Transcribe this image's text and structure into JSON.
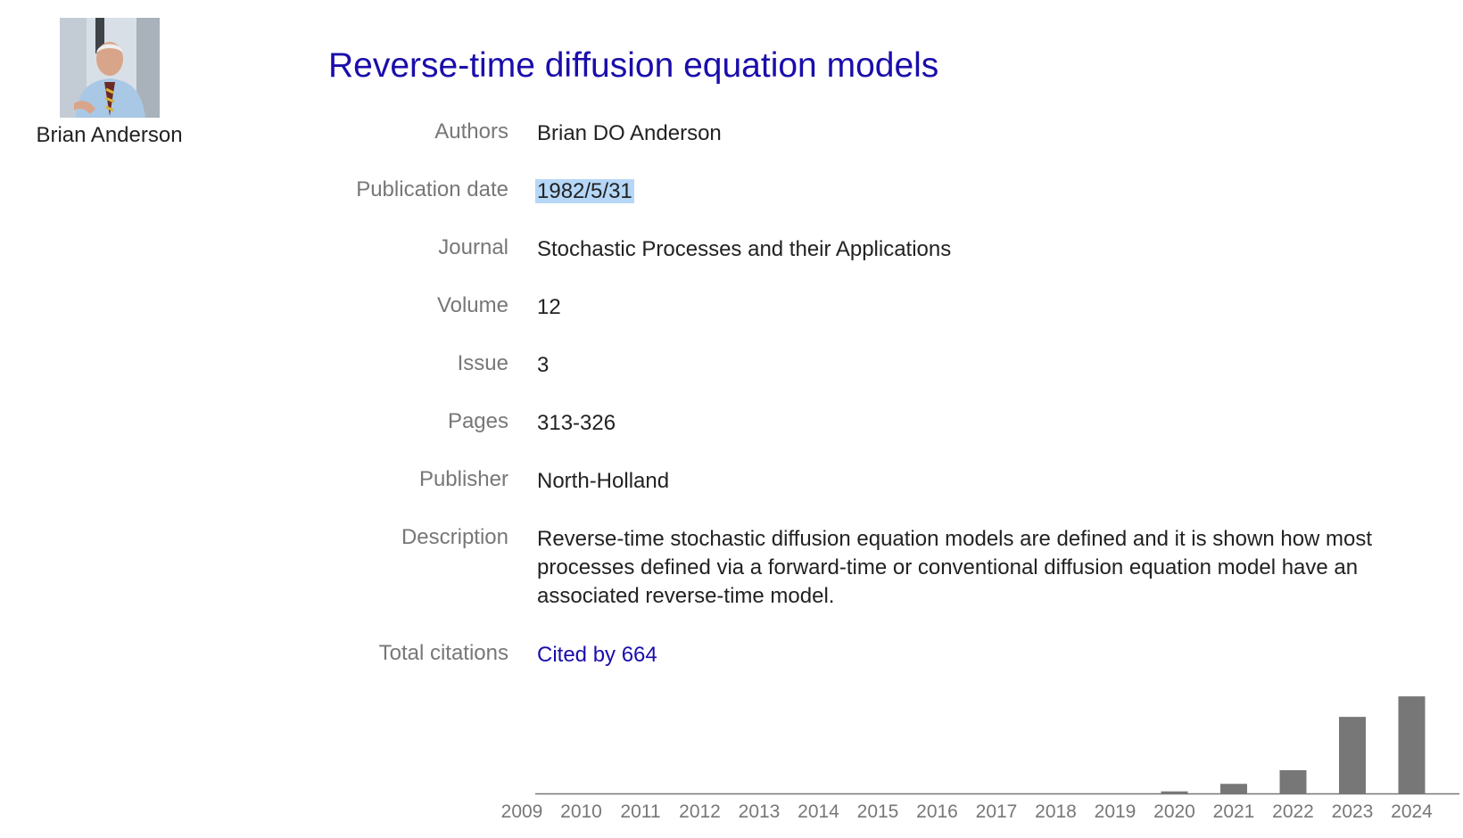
{
  "profile": {
    "name": "Brian Anderson",
    "avatar_icon": "person-photo-icon"
  },
  "article": {
    "title": "Reverse-time diffusion equation models"
  },
  "fields": {
    "authors": {
      "label": "Authors",
      "value": "Brian DO Anderson"
    },
    "publication_date": {
      "label": "Publication date",
      "value": "1982/5/31"
    },
    "journal": {
      "label": "Journal",
      "value": "Stochastic Processes and their Applications"
    },
    "volume": {
      "label": "Volume",
      "value": "12"
    },
    "issue": {
      "label": "Issue",
      "value": "3"
    },
    "pages": {
      "label": "Pages",
      "value": "313-326"
    },
    "publisher": {
      "label": "Publisher",
      "value": "North-Holland"
    },
    "description": {
      "label": "Description",
      "value": "Reverse-time stochastic diffusion equation models are defined and it is shown how most processes defined via a forward-time or conventional diffusion equation model have an associated reverse-time model."
    },
    "total_citations": {
      "label": "Total citations",
      "value": "Cited by 664"
    }
  },
  "colors": {
    "link": "#1a0dab",
    "label": "#777777",
    "text": "#222222",
    "bar": "#777777",
    "selection": "#b6d7f7"
  },
  "chart_data": {
    "type": "bar",
    "categories": [
      "2009",
      "2010",
      "2011",
      "2012",
      "2013",
      "2014",
      "2015",
      "2016",
      "2017",
      "2018",
      "2019",
      "2020",
      "2021",
      "2022",
      "2023",
      "2024"
    ],
    "values": [
      0,
      0,
      0,
      0,
      0,
      0,
      0,
      0,
      0,
      0,
      0,
      3,
      14,
      34,
      112,
      142
    ],
    "ylim": [
      0,
      150
    ],
    "title": "",
    "xlabel": "",
    "ylabel": "",
    "grid": false
  }
}
